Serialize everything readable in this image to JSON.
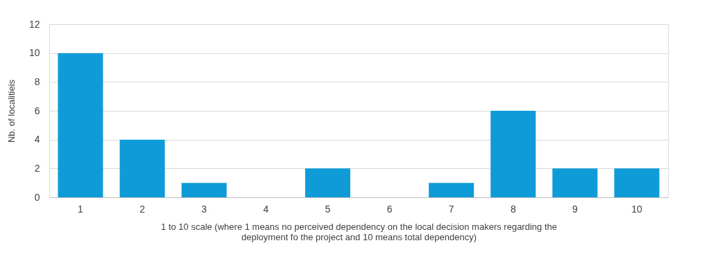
{
  "chart_data": {
    "type": "bar",
    "categories": [
      "1",
      "2",
      "3",
      "4",
      "5",
      "6",
      "7",
      "8",
      "9",
      "10"
    ],
    "values": [
      10,
      4,
      1,
      0,
      2,
      0,
      1,
      6,
      2,
      2
    ],
    "color": "#0f9ad8",
    "ylim": [
      0,
      12
    ],
    "yticks": [
      0,
      2,
      4,
      6,
      8,
      10,
      12
    ],
    "grid": "y",
    "ylabel": "Nb. of localitieis",
    "xlabel": "1 to 10 scale (where 1 means no perceived dependency on the local decision makers regarding the deployment fo the project and 10 means total dependency)"
  }
}
